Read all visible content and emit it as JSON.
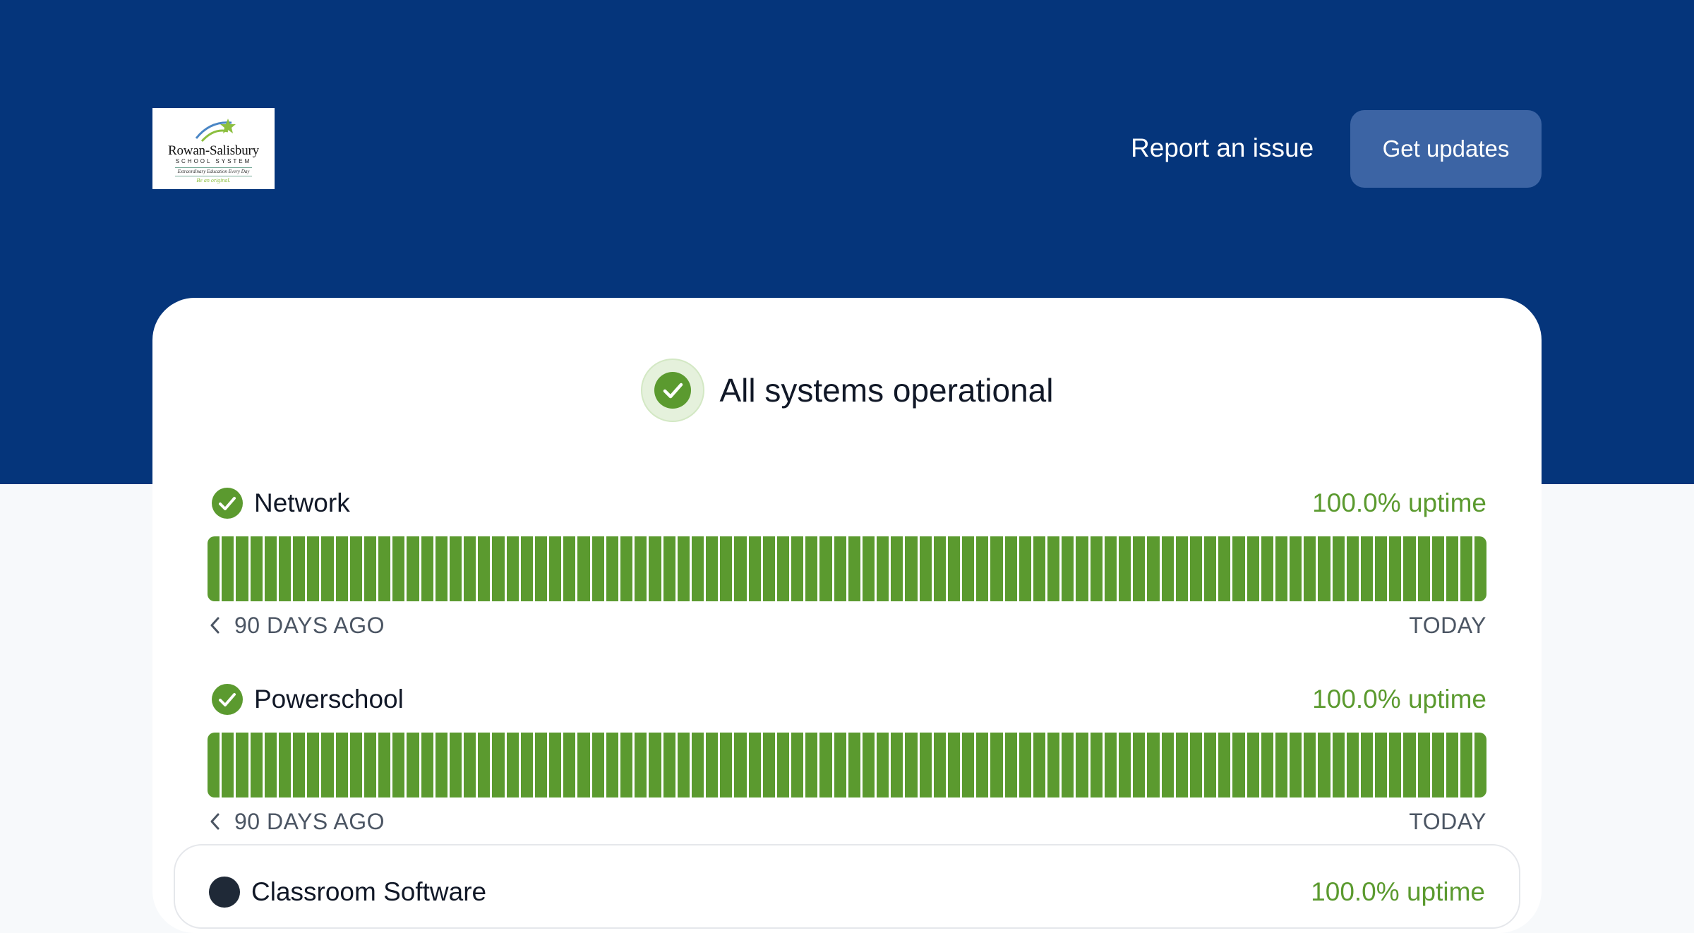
{
  "header": {
    "logo": {
      "title": "Rowan-Salisbury",
      "subtitle": "SCHOOL SYSTEM",
      "tagline": "Extraordinary Education Every Day",
      "slogan": "Be an original."
    },
    "report_label": "Report an issue",
    "updates_label": "Get updates"
  },
  "status": {
    "overall": "All systems operational",
    "ok_color": "#5b9a2f"
  },
  "components": [
    {
      "name": "Network",
      "uptime": "100.0% uptime",
      "days": 90,
      "start_label": "90 DAYS AGO",
      "end_label": "TODAY"
    },
    {
      "name": "Powerschool",
      "uptime": "100.0% uptime",
      "days": 90,
      "start_label": "90 DAYS AGO",
      "end_label": "TODAY"
    }
  ],
  "group": {
    "name": "Classroom Software",
    "uptime": "100.0% uptime"
  }
}
